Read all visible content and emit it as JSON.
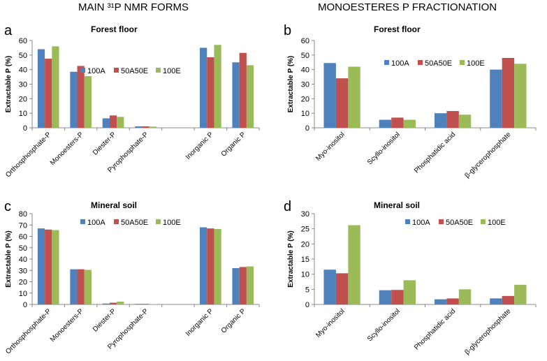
{
  "headings": {
    "left": "MAIN ³¹P NMR FORMS",
    "right": "MONOESTERES P FRACTIONATION"
  },
  "colors": {
    "100A": "#4f81bd",
    "50A50E": "#c0504d",
    "100E": "#9bbb59"
  },
  "chart_data": [
    {
      "id": "a",
      "letter": "a",
      "type": "bar",
      "title": "Forest floor",
      "ylabel": "Extractable P (%)",
      "ylim": [
        0,
        60
      ],
      "ystep": 10,
      "legend_position": "top-center",
      "categories": [
        "Orthosphosphate-P",
        "Monoesters-P",
        "Diester-P",
        "Pyrophosphate-P",
        "",
        "Inorganic P",
        "Organic P"
      ],
      "series": [
        {
          "name": "100A",
          "values": [
            54,
            38.5,
            6.5,
            1,
            null,
            55,
            45
          ]
        },
        {
          "name": "50A50E",
          "values": [
            47.5,
            42.5,
            8.5,
            1,
            null,
            48.5,
            51.5
          ]
        },
        {
          "name": "100E",
          "values": [
            56,
            35.5,
            7.5,
            0.8,
            null,
            57,
            43
          ]
        }
      ]
    },
    {
      "id": "b",
      "letter": "b",
      "type": "bar",
      "title": "Forest floor",
      "ylabel": "Extractable P (%)",
      "ylim": [
        0,
        60
      ],
      "ystep": 10,
      "legend_position": "top-right",
      "categories": [
        "Myo-inositol",
        "Scyllo-inositol",
        "Phosphatidic acid",
        "β-glycerophosphate"
      ],
      "series": [
        {
          "name": "100A",
          "values": [
            44.5,
            5.5,
            10,
            40
          ]
        },
        {
          "name": "50A50E",
          "values": [
            34,
            7,
            11.5,
            48
          ]
        },
        {
          "name": "100E",
          "values": [
            42,
            5.5,
            9,
            44
          ]
        }
      ]
    },
    {
      "id": "c",
      "letter": "c",
      "type": "bar",
      "title": "Mineral soil",
      "ylabel": "Extractable P (%)",
      "ylim": [
        0,
        80
      ],
      "ystep": 10,
      "legend_position": "top-center",
      "categories": [
        "Orthosphosphate-P",
        "Monoesters-P",
        "Diester-P",
        "Pyrophosphate-P",
        "",
        "Inorganic P",
        "Organic P"
      ],
      "series": [
        {
          "name": "100A",
          "values": [
            67,
            31,
            0.8,
            0.5,
            null,
            68,
            32
          ]
        },
        {
          "name": "50A50E",
          "values": [
            66,
            31,
            1.5,
            0.5,
            null,
            67,
            33
          ]
        },
        {
          "name": "100E",
          "values": [
            65.5,
            30.5,
            2.5,
            0.3,
            null,
            66.5,
            33.5
          ]
        }
      ]
    },
    {
      "id": "d",
      "letter": "d",
      "type": "bar",
      "title": "Mineral soil",
      "ylabel": "Extractable P (%)",
      "ylim": [
        0,
        30
      ],
      "ystep": 5,
      "legend_position": "top-right",
      "categories": [
        "Myo-inositol",
        "Scyllo-inositol",
        "Phosphatidic acid",
        "β-glycerophosphate"
      ],
      "series": [
        {
          "name": "100A",
          "values": [
            11.5,
            4.7,
            1.7,
            2
          ]
        },
        {
          "name": "50A50E",
          "values": [
            10.3,
            4.8,
            2,
            2.8
          ]
        },
        {
          "name": "100E",
          "values": [
            26.2,
            8,
            5,
            6.5
          ]
        }
      ]
    }
  ]
}
